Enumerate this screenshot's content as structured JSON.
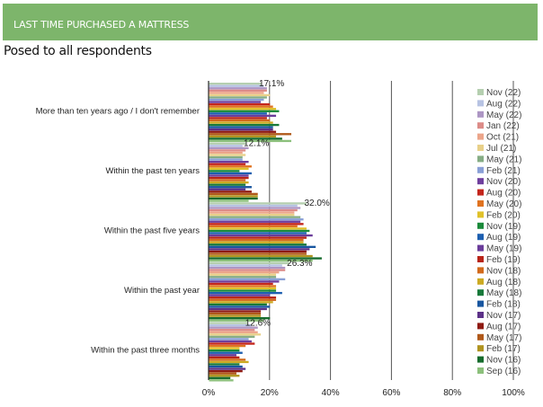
{
  "header": {
    "title": "LAST TIME PURCHASED A MATTRESS",
    "subtitle": "Posed to all respondents"
  },
  "colors": {
    "banner": "#7db56b"
  },
  "chart_data": {
    "type": "bar",
    "orientation": "horizontal",
    "title": "LAST TIME PURCHASED A MATTRESS",
    "subtitle": "Posed to all respondents",
    "xlabel": "",
    "ylabel": "",
    "xlim": [
      0,
      100
    ],
    "x_ticks": [
      "0%",
      "20%",
      "40%",
      "60%",
      "80%",
      "100%"
    ],
    "grid": true,
    "legend_position": "right",
    "categories": [
      "More than ten years ago / I don't remember",
      "Within the past ten years",
      "Within the past five years",
      "Within the past year",
      "Within the past three months"
    ],
    "data_labels": [
      "17.1%",
      "12.1%",
      "32.0%",
      "26.3%",
      "12.6%"
    ],
    "series": [
      {
        "name": "Nov (22)",
        "color": "#b5cfb0",
        "values": [
          17.1,
          12.1,
          32.0,
          26.3,
          12.6
        ]
      },
      {
        "name": "Aug (22)",
        "color": "#b7c3e3",
        "values": [
          18,
          11,
          29,
          24,
          14
        ]
      },
      {
        "name": "May (22)",
        "color": "#ad96c4",
        "values": [
          19,
          13,
          30,
          25,
          16
        ]
      },
      {
        "name": "Jan (22)",
        "color": "#dc8c88",
        "values": [
          19,
          12,
          29,
          25,
          15
        ]
      },
      {
        "name": "Oct (21)",
        "color": "#eca58a",
        "values": [
          18,
          11,
          28,
          23,
          16
        ]
      },
      {
        "name": "Jul (21)",
        "color": "#e8d089",
        "values": [
          20,
          12,
          28,
          22,
          17
        ]
      },
      {
        "name": "May (21)",
        "color": "#86ad85",
        "values": [
          19,
          11,
          30,
          22,
          15
        ]
      },
      {
        "name": "Feb (21)",
        "color": "#8aa0d6",
        "values": [
          18,
          11,
          31,
          25,
          13
        ]
      },
      {
        "name": "Nov (20)",
        "color": "#6f3f9e",
        "values": [
          17,
          13,
          30,
          23,
          14
        ]
      },
      {
        "name": "Aug (20)",
        "color": "#c4261c",
        "values": [
          20,
          12,
          31,
          21,
          15
        ]
      },
      {
        "name": "May (20)",
        "color": "#e07320",
        "values": [
          21,
          14,
          29,
          22,
          12
        ]
      },
      {
        "name": "Feb (20)",
        "color": "#e0c12a",
        "values": [
          22,
          13,
          32,
          22,
          10
        ]
      },
      {
        "name": "Nov (19)",
        "color": "#1a8a3a",
        "values": [
          23,
          10,
          33,
          22,
          10
        ]
      },
      {
        "name": "Aug (19)",
        "color": "#1d5fb0",
        "values": [
          19,
          14,
          32,
          24,
          11
        ]
      },
      {
        "name": "May (19)",
        "color": "#6a3c9a",
        "values": [
          22,
          13,
          34,
          20,
          9
        ]
      },
      {
        "name": "Feb (19)",
        "color": "#b82418",
        "values": [
          19,
          13,
          32,
          22,
          10
        ]
      },
      {
        "name": "Nov (18)",
        "color": "#d26a1c",
        "values": [
          20,
          12,
          31,
          22,
          12
        ]
      },
      {
        "name": "Aug (18)",
        "color": "#ccaa22",
        "values": [
          21,
          13,
          31,
          21,
          13
        ]
      },
      {
        "name": "May (18)",
        "color": "#17793a",
        "values": [
          23,
          12,
          32,
          19,
          10
        ]
      },
      {
        "name": "Feb (18)",
        "color": "#1856a0",
        "values": [
          21,
          14,
          35,
          20,
          11
        ]
      },
      {
        "name": "Nov (17)",
        "color": "#5c3188",
        "values": [
          21,
          12,
          33,
          19,
          12
        ]
      },
      {
        "name": "Aug (17)",
        "color": "#8e1a12",
        "values": [
          22,
          14,
          32,
          17,
          11
        ]
      },
      {
        "name": "May (17)",
        "color": "#b0591a",
        "values": [
          27,
          16,
          32,
          17,
          9
        ]
      },
      {
        "name": "Feb (17)",
        "color": "#b09420",
        "values": [
          22,
          16,
          34,
          17,
          10
        ]
      },
      {
        "name": "Nov (16)",
        "color": "#156b2c",
        "values": [
          24,
          16,
          37,
          20,
          7
        ]
      },
      {
        "name": "Sep (16)",
        "color": "#8cc07c",
        "values": [
          27,
          13,
          34,
          18,
          8
        ]
      }
    ]
  }
}
